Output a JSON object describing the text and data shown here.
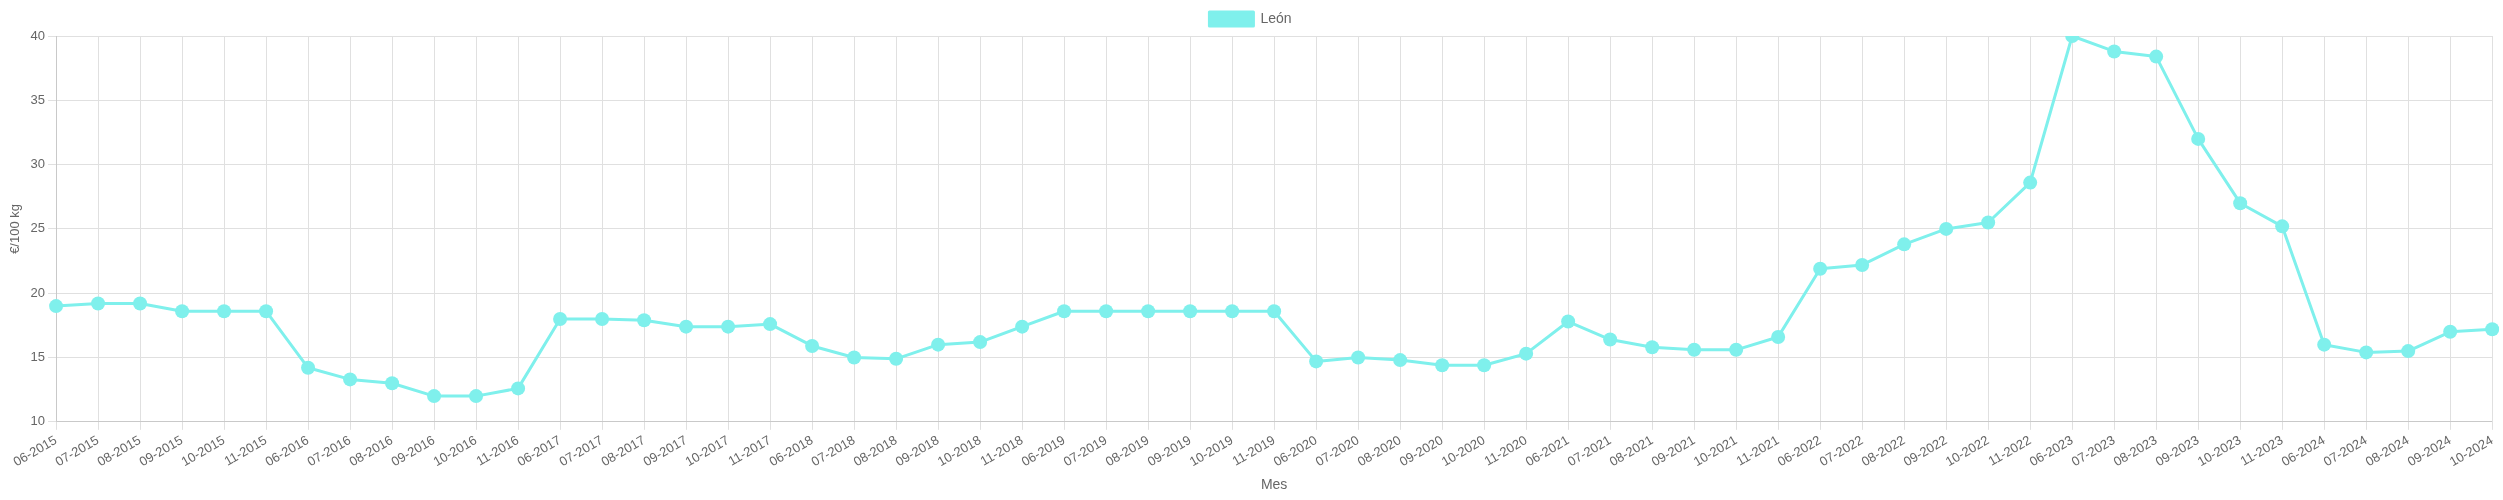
{
  "chart_data": {
    "type": "line",
    "xlabel": "Mes",
    "ylabel": "€/100 kg",
    "categories": [
      "06-2015",
      "07-2015",
      "08-2015",
      "09-2015",
      "10-2015",
      "11-2015",
      "06-2016",
      "07-2016",
      "08-2016",
      "09-2016",
      "10-2016",
      "11-2016",
      "06-2017",
      "07-2017",
      "08-2017",
      "09-2017",
      "10-2017",
      "11-2017",
      "06-2018",
      "07-2018",
      "08-2018",
      "09-2018",
      "10-2018",
      "11-2018",
      "06-2019",
      "07-2019",
      "08-2019",
      "09-2019",
      "10-2019",
      "11-2019",
      "06-2020",
      "07-2020",
      "08-2020",
      "09-2020",
      "10-2020",
      "11-2020",
      "06-2021",
      "07-2021",
      "08-2021",
      "09-2021",
      "10-2021",
      "11-2021",
      "06-2022",
      "07-2022",
      "08-2022",
      "09-2022",
      "10-2022",
      "11-2022",
      "06-2023",
      "07-2023",
      "08-2023",
      "09-2023",
      "10-2023",
      "11-2023",
      "06-2024",
      "07-2024",
      "08-2024",
      "09-2024",
      "10-2024"
    ],
    "series": [
      {
        "name": "León",
        "color": "#7ff0ec",
        "values": [
          19,
          19.2,
          19.2,
          18.6,
          18.6,
          18.6,
          14.2,
          13.3,
          13,
          12,
          12,
          12.6,
          18,
          18,
          17.9,
          17.4,
          17.4,
          17.6,
          15.9,
          15,
          14.9,
          16,
          16.2,
          17.4,
          18.6,
          18.6,
          18.6,
          18.6,
          18.6,
          18.6,
          14.7,
          15,
          14.8,
          14.4,
          14.4,
          15.3,
          17.8,
          16.4,
          15.8,
          15.6,
          15.6,
          16.6,
          21.9,
          22.2,
          23.8,
          25,
          25.5,
          28.6,
          40,
          38.8,
          38.4,
          32,
          27,
          25.2,
          16,
          15.4,
          15.5,
          17,
          17.2
        ]
      }
    ],
    "ylim": [
      10,
      40
    ],
    "yticks": [
      10,
      15,
      20,
      25,
      30,
      35,
      40
    ],
    "grid": true,
    "legend": "top",
    "marker": "circle",
    "line_style": "solid"
  }
}
